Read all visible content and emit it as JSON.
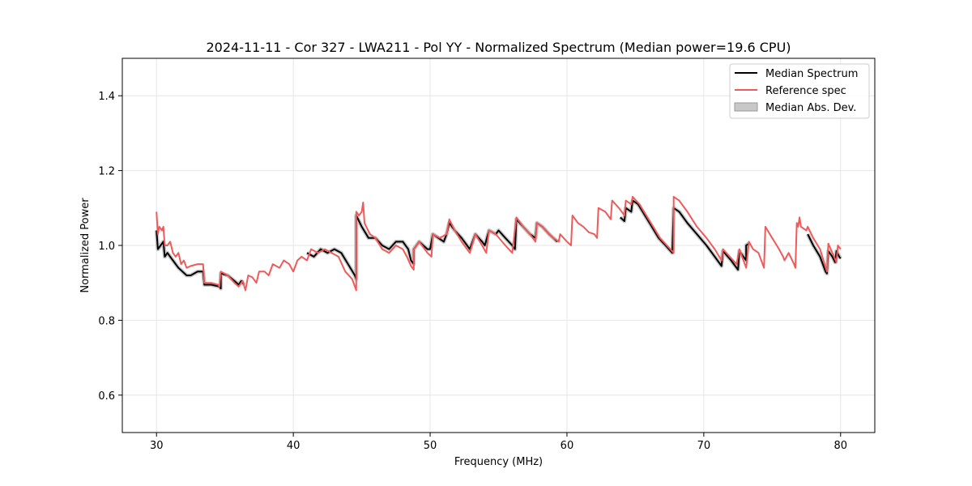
{
  "chart_data": {
    "type": "line",
    "title": "2024-11-11 - Cor 327 - LWA211 - Pol YY - Normalized Spectrum (Median power=19.6 CPU)",
    "xlabel": "Frequency (MHz)",
    "ylabel": "Normalized Power",
    "xlim": [
      27.5,
      82.5
    ],
    "ylim": [
      0.5,
      1.5
    ],
    "xticks": [
      30,
      40,
      50,
      60,
      70,
      80
    ],
    "yticks": [
      0.6,
      0.8,
      1.0,
      1.2,
      1.4
    ],
    "xtick_labels": [
      "30",
      "40",
      "50",
      "60",
      "70",
      "80"
    ],
    "ytick_labels": [
      "0.6",
      "0.8",
      "1.0",
      "1.2",
      "1.4"
    ],
    "grid": true,
    "legend_position": "top-right",
    "legend": {
      "median": "Median Spectrum",
      "reference": "Reference spec",
      "mad": "Median Abs. Dev."
    },
    "colors": {
      "median": "#000000",
      "reference": "#f05a5a",
      "mad": "#c8c8c8",
      "grid": "#e6e6e6"
    },
    "median_segments": [
      [
        [
          30.0,
          1.04
        ],
        [
          30.1,
          0.99
        ],
        [
          30.3,
          1.0
        ],
        [
          30.5,
          1.01
        ],
        [
          30.6,
          0.97
        ],
        [
          30.8,
          0.98
        ],
        [
          31.0,
          0.97
        ],
        [
          31.2,
          0.96
        ],
        [
          31.4,
          0.95
        ],
        [
          31.6,
          0.94
        ],
        [
          31.9,
          0.93
        ],
        [
          32.2,
          0.92
        ],
        [
          32.5,
          0.92
        ],
        [
          33.0,
          0.93
        ],
        [
          33.4,
          0.93
        ],
        [
          33.5,
          0.895
        ],
        [
          34.0,
          0.895
        ],
        [
          34.6,
          0.89
        ],
        [
          34.7,
          0.885
        ],
        [
          34.7,
          0.925
        ],
        [
          35.2,
          0.92
        ],
        [
          35.7,
          0.905
        ],
        [
          36.0,
          0.895
        ],
        [
          36.2,
          0.905
        ],
        [
          36.4,
          0.895
        ]
      ],
      [
        [
          41.0,
          0.98
        ],
        [
          41.5,
          0.97
        ],
        [
          42.0,
          0.99
        ],
        [
          42.5,
          0.98
        ],
        [
          43.0,
          0.99
        ],
        [
          43.5,
          0.98
        ],
        [
          44.0,
          0.95
        ],
        [
          44.5,
          0.92
        ],
        [
          44.6,
          0.91
        ],
        [
          44.6,
          1.08
        ],
        [
          45.0,
          1.05
        ],
        [
          45.5,
          1.02
        ],
        [
          46.0,
          1.02
        ],
        [
          46.5,
          1.0
        ],
        [
          47.0,
          0.99
        ],
        [
          47.5,
          1.01
        ],
        [
          48.0,
          1.01
        ],
        [
          48.4,
          0.99
        ],
        [
          48.6,
          0.96
        ],
        [
          48.8,
          0.95
        ],
        [
          48.8,
          0.99
        ],
        [
          49.2,
          1.01
        ],
        [
          49.8,
          0.99
        ],
        [
          50.0,
          0.99
        ],
        [
          50.2,
          1.03
        ],
        [
          50.6,
          1.02
        ],
        [
          51.0,
          1.01
        ],
        [
          51.2,
          1.03
        ],
        [
          51.4,
          1.06
        ],
        [
          51.8,
          1.04
        ],
        [
          52.3,
          1.02
        ],
        [
          52.9,
          0.99
        ],
        [
          53.3,
          1.03
        ],
        [
          53.8,
          1.01
        ],
        [
          54.0,
          1.0
        ],
        [
          54.3,
          1.04
        ],
        [
          54.8,
          1.03
        ],
        [
          55.0,
          1.04
        ],
        [
          55.5,
          1.02
        ],
        [
          56.0,
          1.0
        ],
        [
          56.2,
          0.99
        ],
        [
          56.3,
          1.07
        ],
        [
          56.8,
          1.05
        ],
        [
          57.3,
          1.03
        ],
        [
          57.7,
          1.02
        ],
        [
          57.8,
          1.06
        ],
        [
          58.2,
          1.05
        ],
        [
          58.7,
          1.03
        ],
        [
          59.0,
          1.02
        ],
        [
          59.3,
          1.01
        ]
      ],
      [
        [
          63.9,
          1.075
        ],
        [
          64.2,
          1.065
        ],
        [
          64.3,
          1.1
        ],
        [
          64.7,
          1.09
        ],
        [
          64.8,
          1.12
        ],
        [
          65.2,
          1.11
        ],
        [
          65.7,
          1.08
        ],
        [
          66.2,
          1.05
        ],
        [
          66.7,
          1.02
        ],
        [
          67.2,
          1.0
        ],
        [
          67.7,
          0.98
        ],
        [
          67.8,
          1.1
        ],
        [
          68.2,
          1.09
        ],
        [
          68.8,
          1.06
        ],
        [
          69.5,
          1.03
        ],
        [
          70.2,
          1.0
        ],
        [
          70.8,
          0.97
        ],
        [
          71.3,
          0.945
        ],
        [
          71.4,
          0.985
        ],
        [
          72.0,
          0.96
        ],
        [
          72.5,
          0.935
        ],
        [
          72.6,
          0.985
        ],
        [
          73.1,
          0.96
        ],
        [
          73.1,
          1.0
        ],
        [
          73.3,
          1.005
        ]
      ],
      [
        [
          77.6,
          1.03
        ],
        [
          78.0,
          1.0
        ],
        [
          78.5,
          0.97
        ],
        [
          78.9,
          0.93
        ],
        [
          79.0,
          0.925
        ],
        [
          79.1,
          0.985
        ],
        [
          79.4,
          0.97
        ],
        [
          79.6,
          0.955
        ],
        [
          79.7,
          0.985
        ],
        [
          79.9,
          0.97
        ],
        [
          80.0,
          0.965
        ]
      ]
    ],
    "reference_segments": [
      [
        [
          30.0,
          1.09
        ],
        [
          30.1,
          1.03
        ],
        [
          30.2,
          1.05
        ],
        [
          30.4,
          1.04
        ],
        [
          30.5,
          1.05
        ],
        [
          30.6,
          1.0
        ],
        [
          30.8,
          1.0
        ],
        [
          31.0,
          1.01
        ],
        [
          31.2,
          0.98
        ],
        [
          31.4,
          0.97
        ],
        [
          31.6,
          0.98
        ],
        [
          31.8,
          0.95
        ],
        [
          32.0,
          0.96
        ],
        [
          32.2,
          0.94
        ],
        [
          32.5,
          0.945
        ],
        [
          33.0,
          0.95
        ],
        [
          33.4,
          0.95
        ],
        [
          33.5,
          0.9
        ],
        [
          34.0,
          0.9
        ],
        [
          34.5,
          0.895
        ],
        [
          34.6,
          0.89
        ],
        [
          34.7,
          0.93
        ],
        [
          35.2,
          0.92
        ],
        [
          35.7,
          0.9
        ],
        [
          36.0,
          0.89
        ],
        [
          36.3,
          0.905
        ],
        [
          36.5,
          0.88
        ],
        [
          36.7,
          0.92
        ],
        [
          37.0,
          0.915
        ],
        [
          37.3,
          0.9
        ],
        [
          37.5,
          0.93
        ],
        [
          37.9,
          0.93
        ],
        [
          38.2,
          0.92
        ],
        [
          38.5,
          0.95
        ],
        [
          39.0,
          0.94
        ],
        [
          39.3,
          0.96
        ],
        [
          39.7,
          0.95
        ],
        [
          40.0,
          0.93
        ],
        [
          40.3,
          0.96
        ],
        [
          40.6,
          0.97
        ],
        [
          41.0,
          0.96
        ],
        [
          41.3,
          0.99
        ],
        [
          41.8,
          0.98
        ],
        [
          42.3,
          0.99
        ],
        [
          42.8,
          0.98
        ],
        [
          43.3,
          0.97
        ],
        [
          43.8,
          0.93
        ],
        [
          44.3,
          0.91
        ],
        [
          44.6,
          0.88
        ],
        [
          44.6,
          1.09
        ],
        [
          44.8,
          1.08
        ],
        [
          45.0,
          1.09
        ],
        [
          45.1,
          1.115
        ],
        [
          45.2,
          1.06
        ],
        [
          45.6,
          1.03
        ],
        [
          46.0,
          1.02
        ],
        [
          46.5,
          0.99
        ],
        [
          47.0,
          0.98
        ],
        [
          47.5,
          1.0
        ],
        [
          48.0,
          0.99
        ],
        [
          48.3,
          0.97
        ],
        [
          48.6,
          0.945
        ],
        [
          48.8,
          0.935
        ],
        [
          48.8,
          0.99
        ],
        [
          49.2,
          1.01
        ],
        [
          49.8,
          0.98
        ],
        [
          50.1,
          0.97
        ],
        [
          50.2,
          1.03
        ],
        [
          50.7,
          1.02
        ],
        [
          51.2,
          1.03
        ],
        [
          51.4,
          1.07
        ],
        [
          51.8,
          1.04
        ],
        [
          52.3,
          1.01
        ],
        [
          52.9,
          0.98
        ],
        [
          53.3,
          1.03
        ],
        [
          53.8,
          1.0
        ],
        [
          54.1,
          0.98
        ],
        [
          54.3,
          1.04
        ],
        [
          54.8,
          1.03
        ],
        [
          55.5,
          1.0
        ],
        [
          56.0,
          0.98
        ],
        [
          56.3,
          1.075
        ],
        [
          56.8,
          1.05
        ],
        [
          57.3,
          1.03
        ],
        [
          57.7,
          1.01
        ],
        [
          57.8,
          1.06
        ],
        [
          58.2,
          1.05
        ],
        [
          58.7,
          1.03
        ],
        [
          59.0,
          1.02
        ],
        [
          59.4,
          1.01
        ],
        [
          59.5,
          1.03
        ],
        [
          60.0,
          1.01
        ],
        [
          60.3,
          1.0
        ],
        [
          60.4,
          1.08
        ],
        [
          60.8,
          1.06
        ],
        [
          61.2,
          1.05
        ],
        [
          61.6,
          1.035
        ],
        [
          62.0,
          1.03
        ],
        [
          62.2,
          1.02
        ],
        [
          62.3,
          1.1
        ],
        [
          62.8,
          1.09
        ],
        [
          63.2,
          1.07
        ],
        [
          63.3,
          1.12
        ],
        [
          63.8,
          1.1
        ],
        [
          64.2,
          1.08
        ],
        [
          64.3,
          1.12
        ],
        [
          64.7,
          1.11
        ],
        [
          64.8,
          1.13
        ],
        [
          65.3,
          1.11
        ],
        [
          65.8,
          1.08
        ],
        [
          66.3,
          1.05
        ],
        [
          66.8,
          1.02
        ],
        [
          67.3,
          1.0
        ],
        [
          67.8,
          0.98
        ],
        [
          67.8,
          1.13
        ],
        [
          68.2,
          1.12
        ],
        [
          68.8,
          1.09
        ],
        [
          69.5,
          1.05
        ],
        [
          70.2,
          1.02
        ],
        [
          70.8,
          0.99
        ],
        [
          71.3,
          0.96
        ],
        [
          71.4,
          0.99
        ],
        [
          71.9,
          0.97
        ],
        [
          72.4,
          0.95
        ],
        [
          72.6,
          0.99
        ],
        [
          73.1,
          0.94
        ],
        [
          73.3,
          1.01
        ],
        [
          73.6,
          0.99
        ],
        [
          74.0,
          0.98
        ],
        [
          74.4,
          0.94
        ],
        [
          74.5,
          1.05
        ],
        [
          75.0,
          1.02
        ],
        [
          75.5,
          0.99
        ],
        [
          75.8,
          0.97
        ],
        [
          75.9,
          0.96
        ],
        [
          76.2,
          0.98
        ],
        [
          76.6,
          0.95
        ],
        [
          76.7,
          0.94
        ],
        [
          76.8,
          1.06
        ],
        [
          76.9,
          1.05
        ],
        [
          77.0,
          1.075
        ],
        [
          77.1,
          1.05
        ],
        [
          77.5,
          1.04
        ],
        [
          77.6,
          1.05
        ],
        [
          78.0,
          1.02
        ],
        [
          78.5,
          0.99
        ],
        [
          79.0,
          0.93
        ],
        [
          79.1,
          1.005
        ],
        [
          79.4,
          0.98
        ],
        [
          79.7,
          0.955
        ],
        [
          79.8,
          1.0
        ],
        [
          80.0,
          0.99
        ]
      ]
    ]
  }
}
